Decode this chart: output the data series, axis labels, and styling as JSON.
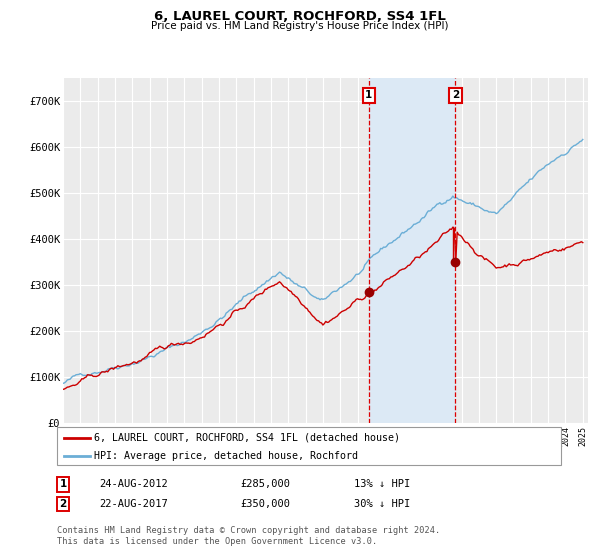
{
  "title": "6, LAUREL COURT, ROCHFORD, SS4 1FL",
  "subtitle": "Price paid vs. HM Land Registry's House Price Index (HPI)",
  "legend_line1": "6, LAUREL COURT, ROCHFORD, SS4 1FL (detached house)",
  "legend_line2": "HPI: Average price, detached house, Rochford",
  "annotation1_date": "24-AUG-2012",
  "annotation1_price": "£285,000",
  "annotation1_hpi": "13% ↓ HPI",
  "annotation2_date": "22-AUG-2017",
  "annotation2_price": "£350,000",
  "annotation2_hpi": "30% ↓ HPI",
  "footnote": "Contains HM Land Registry data © Crown copyright and database right 2024.\nThis data is licensed under the Open Government Licence v3.0.",
  "hpi_color": "#6baed6",
  "price_color": "#cc0000",
  "marker_color": "#990000",
  "vline_color": "#dd0000",
  "shade_color": "#dce9f5",
  "plot_bg": "#ebebeb",
  "grid_color": "#ffffff",
  "ylim": [
    0,
    750000
  ],
  "yticks": [
    0,
    100000,
    200000,
    300000,
    400000,
    500000,
    600000,
    700000
  ],
  "ytick_labels": [
    "£0",
    "£100K",
    "£200K",
    "£300K",
    "£400K",
    "£500K",
    "£600K",
    "£700K"
  ],
  "sale1_year": 2012.65,
  "sale1_price": 285000,
  "sale2_year": 2017.65,
  "sale2_price": 350000
}
